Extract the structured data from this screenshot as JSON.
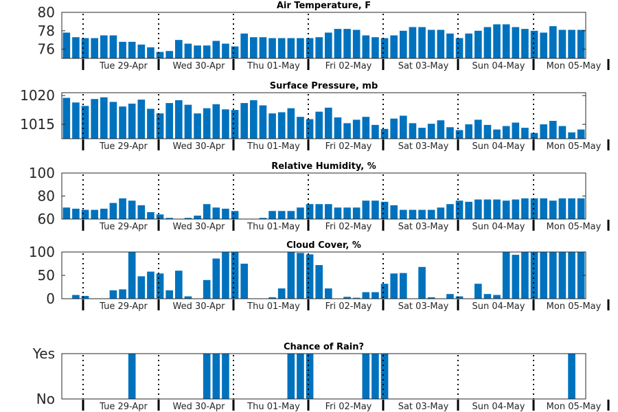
{
  "chart_data": [
    {
      "type": "bar",
      "title": "Air Temperature, F",
      "ylim": [
        75,
        80
      ],
      "yticks": [
        76,
        78,
        80
      ],
      "ytick_labels": [
        "76",
        "78",
        "80"
      ],
      "x_day_labels": [
        "Tue 29-Apr",
        "Wed 30-Apr",
        "Thu 01-May",
        "Fri 02-May",
        "Sat 03-May",
        "Sun 04-May",
        "Mon 05-May"
      ],
      "values": [
        77.8,
        77.3,
        77.2,
        77.2,
        77.5,
        77.5,
        76.8,
        76.8,
        76.5,
        76.2,
        75.7,
        75.8,
        77.0,
        76.6,
        76.4,
        76.4,
        76.9,
        76.6,
        76.3,
        77.7,
        77.3,
        77.3,
        77.2,
        77.2,
        77.2,
        77.2,
        77.2,
        77.3,
        77.8,
        78.2,
        78.2,
        78.1,
        77.5,
        77.3,
        77.2,
        77.5,
        78.0,
        78.4,
        78.4,
        78.1,
        78.1,
        77.7,
        77.2,
        77.7,
        78.0,
        78.4,
        78.7,
        78.7,
        78.4,
        78.2,
        78.0,
        77.8,
        78.5,
        78.1,
        78.1,
        78.1
      ]
    },
    {
      "type": "bar",
      "title": "Surface Pressure, mb",
      "ylim": [
        1012.5,
        1020.5
      ],
      "yticks": [
        1015,
        1020
      ],
      "ytick_labels": [
        "1015",
        "1020"
      ],
      "x_day_labels": [
        "Tue 29-Apr",
        "Wed 30-Apr",
        "Thu 01-May",
        "Fri 02-May",
        "Sat 03-May",
        "Sun 04-May",
        "Mon 05-May"
      ],
      "values": [
        1019.6,
        1018.8,
        1018.2,
        1019.4,
        1019.7,
        1018.9,
        1018.1,
        1018.6,
        1019.3,
        1017.7,
        1016.9,
        1018.7,
        1019.2,
        1018.4,
        1016.9,
        1017.8,
        1018.5,
        1017.6,
        1017.5,
        1018.7,
        1019.2,
        1018.3,
        1016.9,
        1017.1,
        1017.8,
        1016.3,
        1015.9,
        1017.2,
        1017.9,
        1016.2,
        1015.2,
        1015.8,
        1016.3,
        1014.9,
        1014.2,
        1016.0,
        1016.5,
        1015.2,
        1014.4,
        1015.1,
        1015.7,
        1014.5,
        1014.0,
        1015.0,
        1015.8,
        1014.9,
        1014.1,
        1014.7,
        1015.3,
        1014.4,
        1013.5,
        1015.0,
        1015.6,
        1014.7,
        1013.6,
        1014.1
      ]
    },
    {
      "type": "bar",
      "title": "Relative Humidity, %",
      "ylim": [
        60,
        100
      ],
      "yticks": [
        60,
        80,
        100
      ],
      "ytick_labels": [
        "60",
        "80",
        "100"
      ],
      "x_day_labels": [
        "Tue 29-Apr",
        "Wed 30-Apr",
        "Thu 01-May",
        "Fri 02-May",
        "Sat 03-May",
        "Sun 04-May",
        "Mon 05-May"
      ],
      "values": [
        70,
        69,
        68,
        68,
        69,
        74,
        78,
        76,
        72,
        66,
        64,
        61,
        60,
        61,
        63,
        73,
        70,
        69,
        67,
        60,
        60,
        61,
        67,
        67,
        67,
        70,
        73,
        73,
        73,
        70,
        70,
        70,
        76,
        76,
        75,
        72,
        68,
        68,
        68,
        68,
        70,
        73,
        76,
        75,
        77,
        77,
        77,
        76,
        77,
        78,
        78,
        78,
        76,
        78,
        78,
        78
      ]
    },
    {
      "type": "bar",
      "title": "Cloud Cover, %",
      "ylim": [
        0,
        100
      ],
      "yticks": [
        0,
        50,
        100
      ],
      "ytick_labels": [
        "0",
        "50",
        "100"
      ],
      "x_day_labels": [
        "Tue 29-Apr",
        "Wed 30-Apr",
        "Thu 01-May",
        "Fri 02-May",
        "Sat 03-May",
        "Sun 04-May",
        "Mon 05-May"
      ],
      "values": [
        0,
        8,
        6,
        0,
        0,
        18,
        20,
        100,
        48,
        58,
        54,
        18,
        60,
        5,
        0,
        40,
        86,
        100,
        100,
        75,
        0,
        0,
        3,
        22,
        100,
        98,
        95,
        72,
        22,
        0,
        4,
        2,
        14,
        14,
        32,
        54,
        55,
        0,
        68,
        3,
        0,
        10,
        5,
        0,
        32,
        10,
        8,
        100,
        94,
        100,
        100,
        100,
        100,
        100,
        100,
        100
      ]
    },
    {
      "type": "bar",
      "title": "Chance of Rain?",
      "ylim": [
        0,
        1
      ],
      "yticks": [
        0,
        1
      ],
      "ytick_labels": [
        "No",
        "Yes"
      ],
      "x_day_labels": [
        "Tue 29-Apr",
        "Wed 30-Apr",
        "Thu 01-May",
        "Fri 02-May",
        "Sat 03-May",
        "Sun 04-May",
        "Mon 05-May"
      ],
      "values": [
        0,
        0,
        0,
        0,
        0,
        0,
        0,
        1,
        0,
        0,
        0,
        0,
        0,
        0,
        0,
        1,
        1,
        1,
        0,
        0,
        0,
        0,
        0,
        0,
        1,
        1,
        1,
        0,
        0,
        0,
        0,
        0,
        1,
        1,
        1,
        0,
        0,
        0,
        0,
        0,
        0,
        0,
        0,
        0,
        0,
        0,
        0,
        0,
        0,
        0,
        0,
        0,
        0,
        0,
        1,
        0
      ]
    }
  ]
}
